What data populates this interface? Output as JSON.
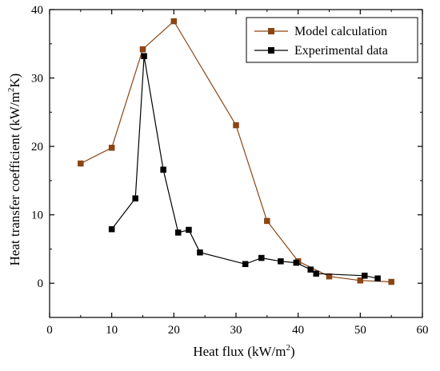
{
  "chart_data": {
    "type": "line",
    "title": "",
    "xlabel": "Heat flux (kW/m²)",
    "xlabel_main": "Heat flux (kW/m",
    "xlabel_sup": "2",
    "xlabel_end": ")",
    "ylabel_main": "Heat transfer coefficient (kW/m",
    "ylabel_sup": "2",
    "ylabel_end": "K)",
    "xlim": [
      0,
      60
    ],
    "ylim": [
      -5,
      40
    ],
    "xticks": [
      0,
      10,
      20,
      30,
      40,
      50,
      60
    ],
    "yticks": [
      0,
      10,
      20,
      30,
      40
    ],
    "grid": false,
    "legend_position": "top-right",
    "series": [
      {
        "name": "Model calculation",
        "color": "#8B4513",
        "marker": "square",
        "x": [
          5,
          10,
          15,
          20,
          30,
          35,
          40,
          45,
          50,
          55
        ],
        "y": [
          17.5,
          19.8,
          34.2,
          38.3,
          23.1,
          9.1,
          3.2,
          1.0,
          0.4,
          0.2
        ]
      },
      {
        "name": "Experimental data",
        "color": "#000000",
        "marker": "square",
        "x": [
          10,
          13.8,
          15.2,
          18.3,
          20.7,
          22.4,
          24.2,
          31.5,
          34.1,
          37.2,
          39.7,
          42.0,
          42.9,
          50.7,
          52.8
        ],
        "y": [
          7.9,
          12.4,
          33.2,
          16.6,
          7.4,
          7.8,
          4.5,
          2.8,
          3.7,
          3.2,
          3.0,
          2.0,
          1.4,
          1.1,
          0.7
        ]
      }
    ]
  }
}
